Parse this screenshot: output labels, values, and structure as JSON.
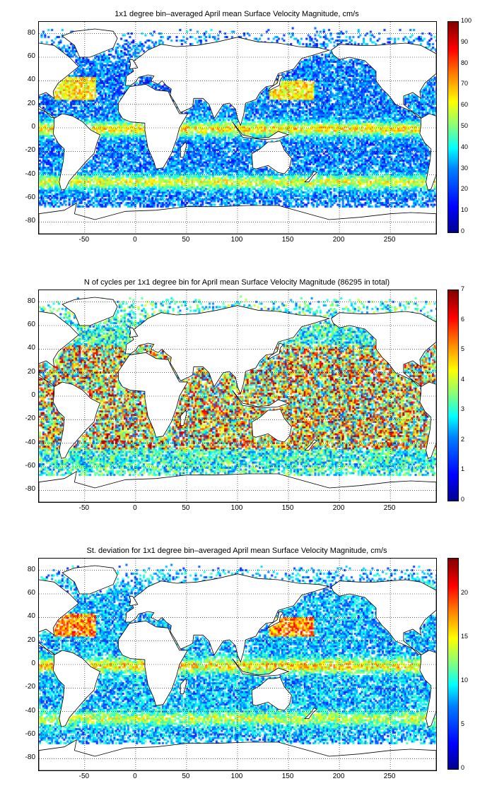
{
  "panels": [
    {
      "title": "1x1 degree bin–averaged April mean Surface Velocity Magnitude, cm/s",
      "colorbar": {
        "min": 0,
        "max": 100,
        "ticks": [
          "0",
          "10",
          "20",
          "30",
          "40",
          "50",
          "60",
          "70",
          "80",
          "90",
          "100"
        ]
      },
      "pattern": "velocity"
    },
    {
      "title": "N of cycles per 1x1 degree bin for April mean Surface Velocity Magnitude (86295 in total)",
      "colorbar": {
        "min": 0,
        "max": 7,
        "ticks": [
          "0",
          "1",
          "2",
          "3",
          "4",
          "5",
          "6",
          "7"
        ]
      },
      "pattern": "counts"
    },
    {
      "title": "St. deviation for 1x1 degree bin–averaged April mean Surface Velocity Magnitude, cm/s",
      "colorbar": {
        "min": 0,
        "max": 24,
        "ticks": [
          "0",
          "5",
          "10",
          "15",
          "20"
        ]
      },
      "pattern": "stdev"
    }
  ],
  "axes": {
    "x_range": [
      -95,
      295
    ],
    "y_range": [
      -90,
      90
    ],
    "x_ticks": [
      "-50",
      "0",
      "50",
      "100",
      "150",
      "200",
      "250"
    ],
    "y_ticks": [
      "80",
      "60",
      "40",
      "20",
      "0",
      "-20",
      "-40",
      "-60",
      "-80"
    ]
  },
  "colors": {
    "background": "#ffffff",
    "coastline": "#000000",
    "grid": "#000000"
  }
}
